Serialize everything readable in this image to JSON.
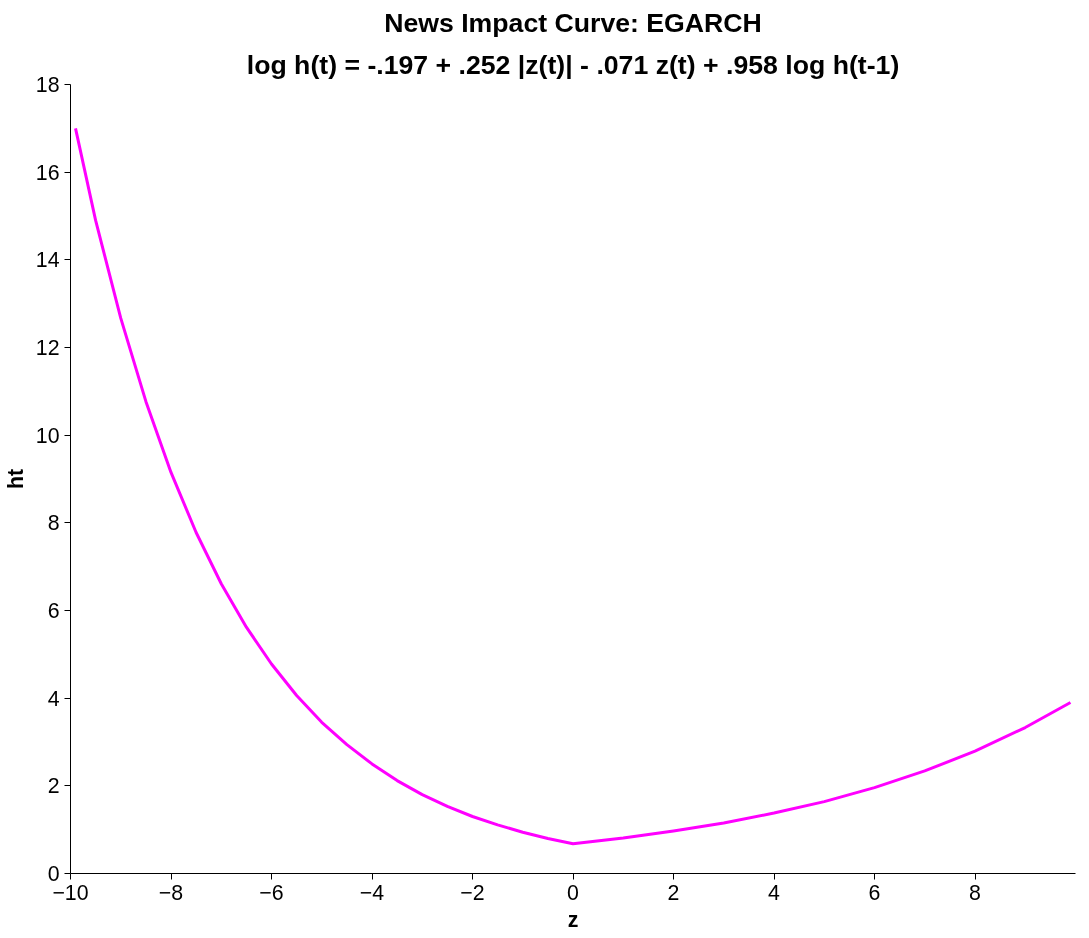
{
  "chart_data": {
    "type": "line",
    "title": "News Impact Curve: EGARCH",
    "subtitle": "log h(t) = -.197 + .252 |z(t)| - .071 z(t) + .958 log h(t-1)",
    "xlabel": "z",
    "ylabel": "ht",
    "x": [
      -9.9,
      -9.5,
      -9,
      -8.5,
      -8,
      -7.5,
      -7,
      -6.5,
      -6,
      -5.5,
      -5,
      -4.5,
      -4,
      -3.5,
      -3,
      -2.5,
      -2,
      -1.5,
      -1,
      -0.5,
      0,
      1,
      2,
      3,
      4,
      5,
      6,
      7,
      8,
      9,
      9.9
    ],
    "series": [
      {
        "color": "#ff00ff",
        "values": [
          17.0,
          14.9,
          12.67,
          10.77,
          9.15,
          7.78,
          6.61,
          5.62,
          4.78,
          4.06,
          3.45,
          2.94,
          2.5,
          2.12,
          1.8,
          1.53,
          1.3,
          1.11,
          0.94,
          0.8,
          0.68,
          0.81,
          0.97,
          1.15,
          1.38,
          1.64,
          1.96,
          2.34,
          2.79,
          3.33,
          3.9
        ]
      }
    ],
    "xlim": [
      -10,
      10
    ],
    "xticks": [
      -10,
      -8,
      -6,
      -4,
      -2,
      0,
      2,
      4,
      6,
      8
    ],
    "ylim": [
      0,
      18
    ],
    "yticks": [
      0,
      2,
      4,
      6,
      8,
      10,
      12,
      14,
      16,
      18
    ],
    "grid": false,
    "marker": "none",
    "line_style": "solid"
  }
}
